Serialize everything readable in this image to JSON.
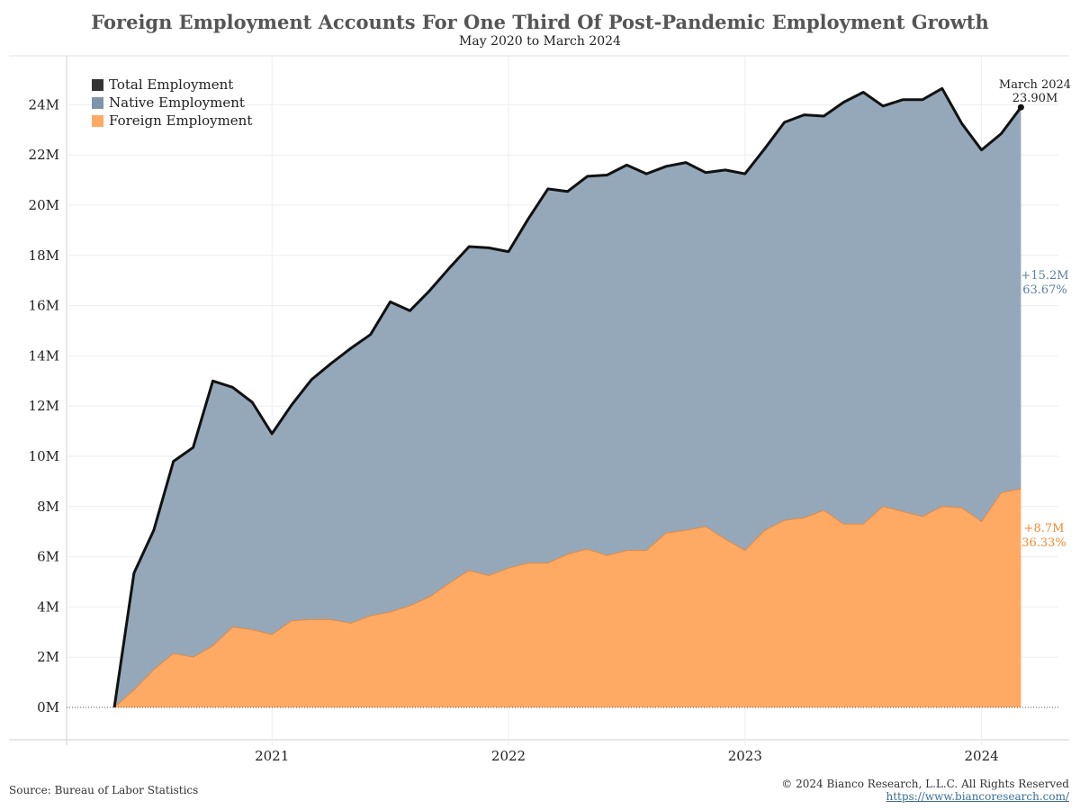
{
  "title": "Foreign Employment Accounts For One Third Of Post-Pandemic Employment Growth",
  "subtitle": "May 2020 to March 2024",
  "source": "Source: Bureau of Labor Statistics",
  "copyright": "© 2024 Bianco Research, L.L.C. All Rights Reserved",
  "url": "https://www.biancoresearch.com/",
  "colors": {
    "total": "#111111",
    "native": "#8fa3b5",
    "foreign": "#ffaa64",
    "native_label": "#5a7fa3",
    "foreign_label": "#f28a30"
  },
  "annotations": {
    "end_label_line1": "March 2024",
    "end_label_line2": "23.90M",
    "native_change": "+15.2M",
    "native_pct": "63.67%",
    "foreign_change": "+8.7M",
    "foreign_pct": "36.33%"
  },
  "chart_data": {
    "type": "area",
    "x_start": "2020-05",
    "x_end": "2024-03",
    "x_ticks": [
      "2021",
      "2022",
      "2023",
      "2024"
    ],
    "y_ticks": [
      "0M",
      "2M",
      "4M",
      "6M",
      "8M",
      "10M",
      "12M",
      "14M",
      "16M",
      "18M",
      "20M",
      "22M",
      "24M"
    ],
    "ylim": [
      -1.3,
      26
    ],
    "x": [
      "2020-05",
      "2020-06",
      "2020-07",
      "2020-08",
      "2020-09",
      "2020-10",
      "2020-11",
      "2020-12",
      "2021-01",
      "2021-02",
      "2021-03",
      "2021-04",
      "2021-05",
      "2021-06",
      "2021-07",
      "2021-08",
      "2021-09",
      "2021-10",
      "2021-11",
      "2021-12",
      "2022-01",
      "2022-02",
      "2022-03",
      "2022-04",
      "2022-05",
      "2022-06",
      "2022-07",
      "2022-08",
      "2022-09",
      "2022-10",
      "2022-11",
      "2022-12",
      "2023-01",
      "2023-02",
      "2023-03",
      "2023-04",
      "2023-05",
      "2023-06",
      "2023-07",
      "2023-08",
      "2023-09",
      "2023-10",
      "2023-11",
      "2023-12",
      "2024-01",
      "2024-02",
      "2024-03"
    ],
    "series": [
      {
        "name": "Total Employment",
        "values": [
          0.0,
          5.35,
          7.05,
          9.8,
          10.35,
          13.0,
          12.75,
          12.15,
          10.9,
          12.05,
          13.05,
          13.7,
          14.3,
          14.85,
          16.15,
          15.8,
          16.6,
          17.5,
          18.35,
          18.3,
          18.15,
          19.45,
          20.65,
          20.55,
          21.15,
          21.2,
          21.6,
          21.25,
          21.55,
          21.7,
          21.3,
          21.4,
          21.25,
          22.25,
          23.3,
          23.6,
          23.55,
          24.1,
          24.5,
          23.95,
          24.2,
          24.2,
          24.65,
          23.25,
          22.2,
          22.85,
          23.9
        ]
      },
      {
        "name": "Native Employment",
        "values": [
          0.0,
          4.65,
          5.55,
          7.65,
          8.35,
          10.5,
          9.55,
          9.05,
          8.0,
          8.6,
          9.55,
          10.2,
          10.95,
          11.2,
          12.35,
          11.75,
          12.2,
          12.55,
          12.9,
          13.05,
          12.6,
          13.7,
          14.9,
          14.45,
          14.9,
          15.15,
          15.35,
          15.0,
          14.6,
          14.65,
          14.1,
          14.7,
          15.0,
          15.2,
          15.85,
          16.05,
          15.7,
          16.8,
          17.2,
          15.95,
          16.4,
          16.6,
          16.65,
          15.3,
          14.8,
          14.3,
          15.2
        ]
      },
      {
        "name": "Foreign Employment",
        "values": [
          0.0,
          0.7,
          1.5,
          2.15,
          2.0,
          2.45,
          3.2,
          3.1,
          2.9,
          3.45,
          3.5,
          3.5,
          3.35,
          3.65,
          3.8,
          4.05,
          4.4,
          4.95,
          5.45,
          5.25,
          5.55,
          5.75,
          5.75,
          6.1,
          6.3,
          6.05,
          6.25,
          6.25,
          6.95,
          7.05,
          7.2,
          6.7,
          6.25,
          7.05,
          7.45,
          7.55,
          7.85,
          7.3,
          7.3,
          8.0,
          7.8,
          7.6,
          8.0,
          7.95,
          7.4,
          8.55,
          8.7
        ]
      }
    ]
  }
}
